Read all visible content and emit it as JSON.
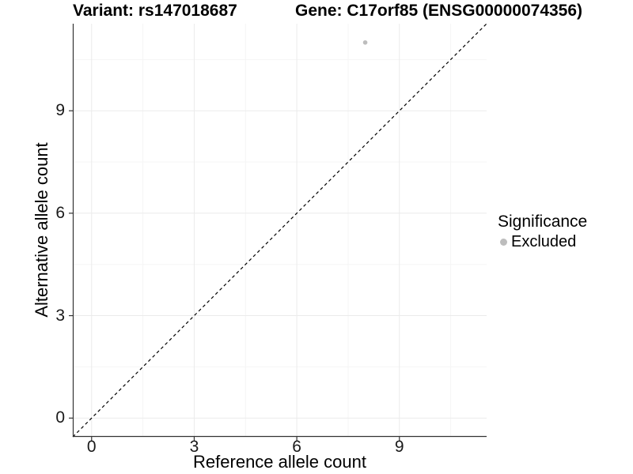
{
  "chart_data": {
    "type": "scatter",
    "title": {
      "variant": "Variant: rs147018687",
      "gene": "Gene: C17orf85 (ENSG00000074356)"
    },
    "xlabel": "Reference allele count",
    "ylabel": "Alternative allele count",
    "xlim": [
      -0.55,
      11.55
    ],
    "ylim": [
      -0.55,
      11.55
    ],
    "xticks": [
      0,
      3,
      6,
      9
    ],
    "yticks": [
      0,
      3,
      6,
      9
    ],
    "minor_xticks": [
      1.5,
      4.5,
      7.5,
      10.5
    ],
    "minor_yticks": [
      1.5,
      4.5,
      7.5,
      10.5
    ],
    "grid": true,
    "points": [
      {
        "x": 8,
        "y": 11,
        "significance": "Excluded"
      }
    ],
    "identity_line": {
      "slope": 1,
      "intercept": 0,
      "style": "dashed"
    },
    "legend": {
      "title": "Significance",
      "position": "right",
      "items": [
        {
          "label": "Excluded",
          "color": "#bdbdbd",
          "marker": "circle"
        }
      ]
    },
    "colors": {
      "point": "#bdbdbd",
      "axis_line": "#333333",
      "tick_mark": "#333333",
      "grid_major": "#ebebeb",
      "grid_minor": "#f5f5f5",
      "identity_line": "#000000",
      "background": "#ffffff",
      "text": "#000000"
    }
  }
}
